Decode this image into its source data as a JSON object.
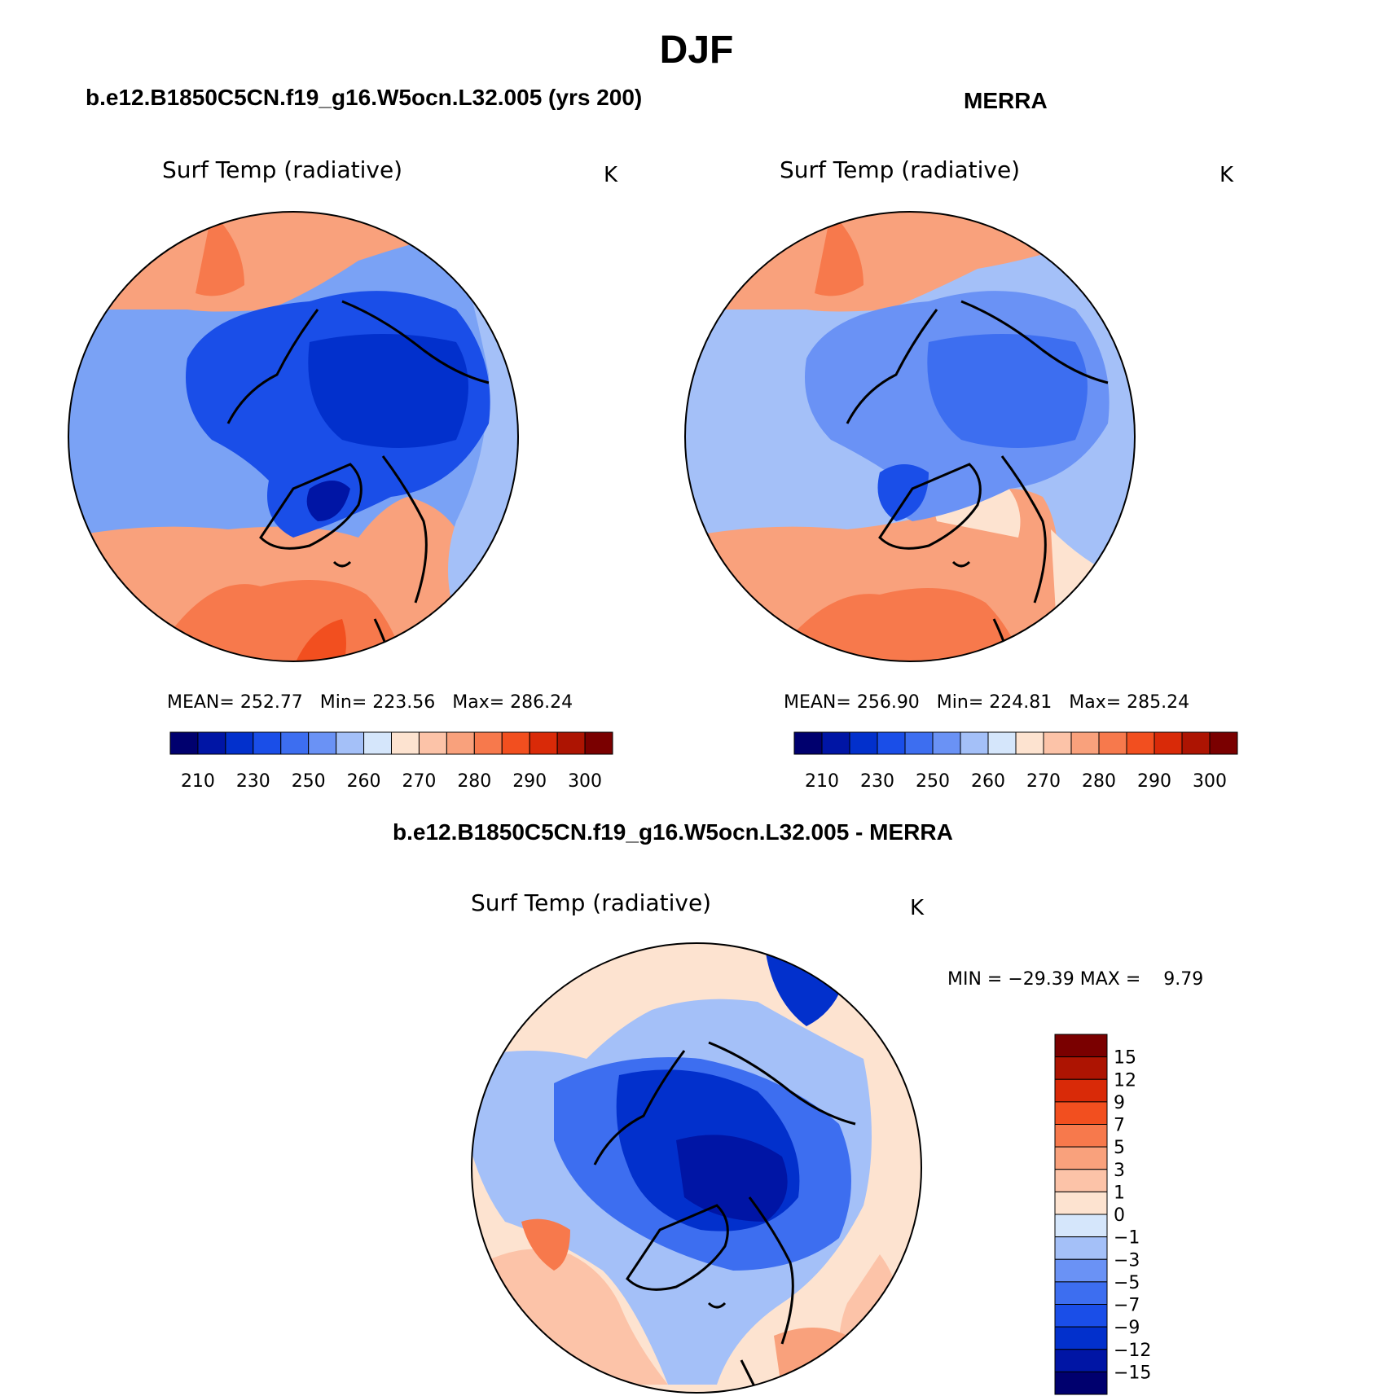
{
  "main_title": "DJF",
  "panels": {
    "model": {
      "heading": "b.e12.B1850C5CN.f19_g16.W5ocn.L32.005 (yrs 200)",
      "field": "Surf Temp (radiative)",
      "units": "K",
      "stats": {
        "mean_label": "MEAN=",
        "mean": "252.77",
        "min_label": "Min=",
        "min": "223.56",
        "max_label": "Max=",
        "max": "286.24"
      }
    },
    "obs": {
      "heading": "MERRA",
      "field": "Surf Temp (radiative)",
      "units": "K",
      "stats": {
        "mean_label": "MEAN=",
        "mean": "256.90",
        "min_label": "Min=",
        "min": "224.81",
        "max_label": "Max=",
        "max": "285.24"
      }
    },
    "diff": {
      "heading": "b.e12.B1850C5CN.f19_g16.W5ocn.L32.005 - MERRA",
      "field": "Surf Temp (radiative)",
      "units": "K",
      "minmax": "MIN = −29.39 MAX =    9.79"
    }
  },
  "abs_colorbar": {
    "tick_labels": [
      "210",
      "230",
      "250",
      "260",
      "270",
      "280",
      "290",
      "300"
    ],
    "colors": [
      "#00006e",
      "#0015a5",
      "#0230cc",
      "#1a4ee8",
      "#3d6ef0",
      "#6a92f5",
      "#a4c0f8",
      "#d5e6fb",
      "#fde3d0",
      "#fcc3a8",
      "#f9a17c",
      "#f7794c",
      "#f24f1f",
      "#d92a08",
      "#ad1402",
      "#7a0000"
    ]
  },
  "diff_colorbar": {
    "tick_labels": [
      "15",
      "12",
      "9",
      "7",
      "5",
      "3",
      "1",
      "0",
      "−1",
      "−3",
      "−5",
      "−7",
      "−9",
      "−12",
      "−15"
    ],
    "colors": [
      "#7a0000",
      "#ad1402",
      "#d92a08",
      "#f24f1f",
      "#f7794c",
      "#f9a17c",
      "#fcc3a8",
      "#fde3d0",
      "#d5e6fb",
      "#a4c0f8",
      "#6a92f5",
      "#3d6ef0",
      "#1a4ee8",
      "#0230cc",
      "#0015a5",
      "#00006e"
    ]
  }
}
